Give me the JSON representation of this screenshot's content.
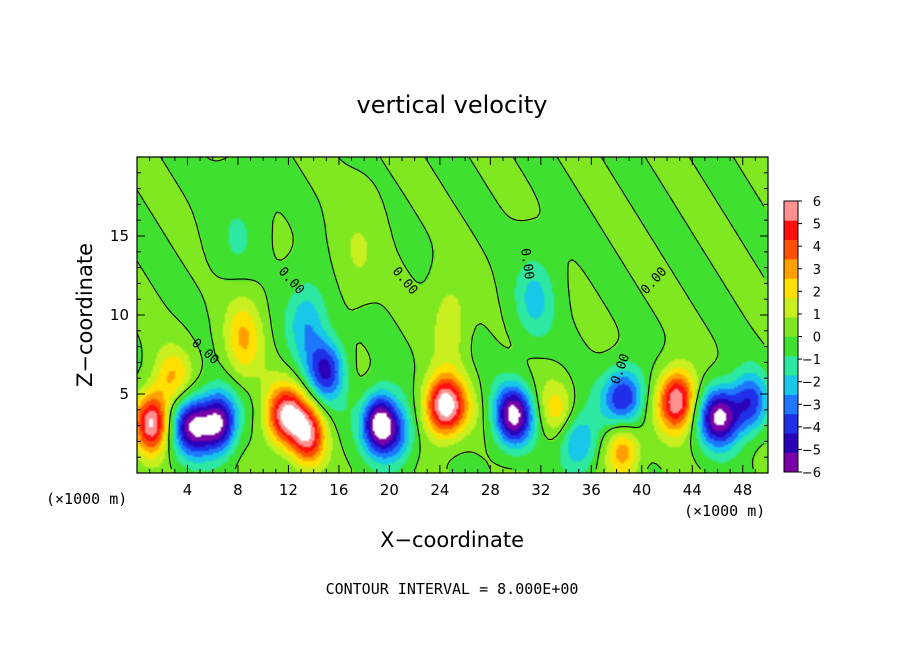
{
  "chart_data": {
    "type": "heatmap",
    "title": "vertical velocity",
    "xlabel": "X−coordinate",
    "ylabel": "Z−coordinate",
    "x_unit_left": "(×1000 m)",
    "x_unit_right": "(×1000 m)",
    "xlim": [
      0,
      50
    ],
    "ylim": [
      0,
      20
    ],
    "x_ticks": [
      4,
      8,
      12,
      16,
      20,
      24,
      28,
      32,
      36,
      40,
      44,
      48
    ],
    "y_ticks": [
      5,
      10,
      15
    ],
    "footer": "CONTOUR INTERVAL = 8.000E+00",
    "contour_label": "0.00",
    "colorbar": {
      "ticks": [
        "6",
        "5",
        "4",
        "3",
        "2",
        "1",
        "0",
        "−1",
        "−2",
        "−3",
        "−4",
        "−5",
        "−6"
      ],
      "range": [
        -6,
        6
      ],
      "colors": [
        "#7a00a8",
        "#2a00b8",
        "#1f30e8",
        "#1e78ff",
        "#18c8e8",
        "#2ce8a0",
        "#40e030",
        "#80e820",
        "#c8f020",
        "#ffe000",
        "#ffa000",
        "#ff5000",
        "#ff1010",
        "#ff9090"
      ]
    },
    "cells": [
      {
        "x": 1.2,
        "z": 3.2,
        "w": 6.2
      },
      {
        "x": 2.8,
        "z": 6.0,
        "w": 2.5
      },
      {
        "x": 4.5,
        "z": 3.0,
        "w": -6.0
      },
      {
        "x": 6.6,
        "z": 3.2,
        "w": -5.6
      },
      {
        "x": 8.4,
        "z": 8.5,
        "w": 2.6
      },
      {
        "x": 11.8,
        "z": 3.6,
        "w": 6.0
      },
      {
        "x": 13.6,
        "z": 2.3,
        "w": 4.8
      },
      {
        "x": 15.0,
        "z": 6.5,
        "w": -4.2
      },
      {
        "x": 13.5,
        "z": 9.5,
        "w": -2.4
      },
      {
        "x": 19.2,
        "z": 3.2,
        "w": -6.4
      },
      {
        "x": 20.6,
        "z": 2.5,
        "w": -3.0
      },
      {
        "x": 24.4,
        "z": 4.2,
        "w": 7.0
      },
      {
        "x": 24.8,
        "z": 9.5,
        "w": 1.6
      },
      {
        "x": 29.8,
        "z": 3.6,
        "w": -6.2
      },
      {
        "x": 31.5,
        "z": 11.0,
        "w": -2.0
      },
      {
        "x": 33.2,
        "z": 4.0,
        "w": 1.8
      },
      {
        "x": 35.0,
        "z": 2.0,
        "w": -3.0
      },
      {
        "x": 38.6,
        "z": 4.8,
        "w": -4.6
      },
      {
        "x": 38.5,
        "z": 1.5,
        "w": 3.4
      },
      {
        "x": 42.8,
        "z": 4.6,
        "w": 6.4
      },
      {
        "x": 46.2,
        "z": 3.6,
        "w": -6.4
      },
      {
        "x": 48.6,
        "z": 4.4,
        "w": -3.8
      },
      {
        "x": 17.5,
        "z": 14.0,
        "w": 1.0
      },
      {
        "x": 8.0,
        "z": 15.0,
        "w": -1.0
      }
    ]
  }
}
